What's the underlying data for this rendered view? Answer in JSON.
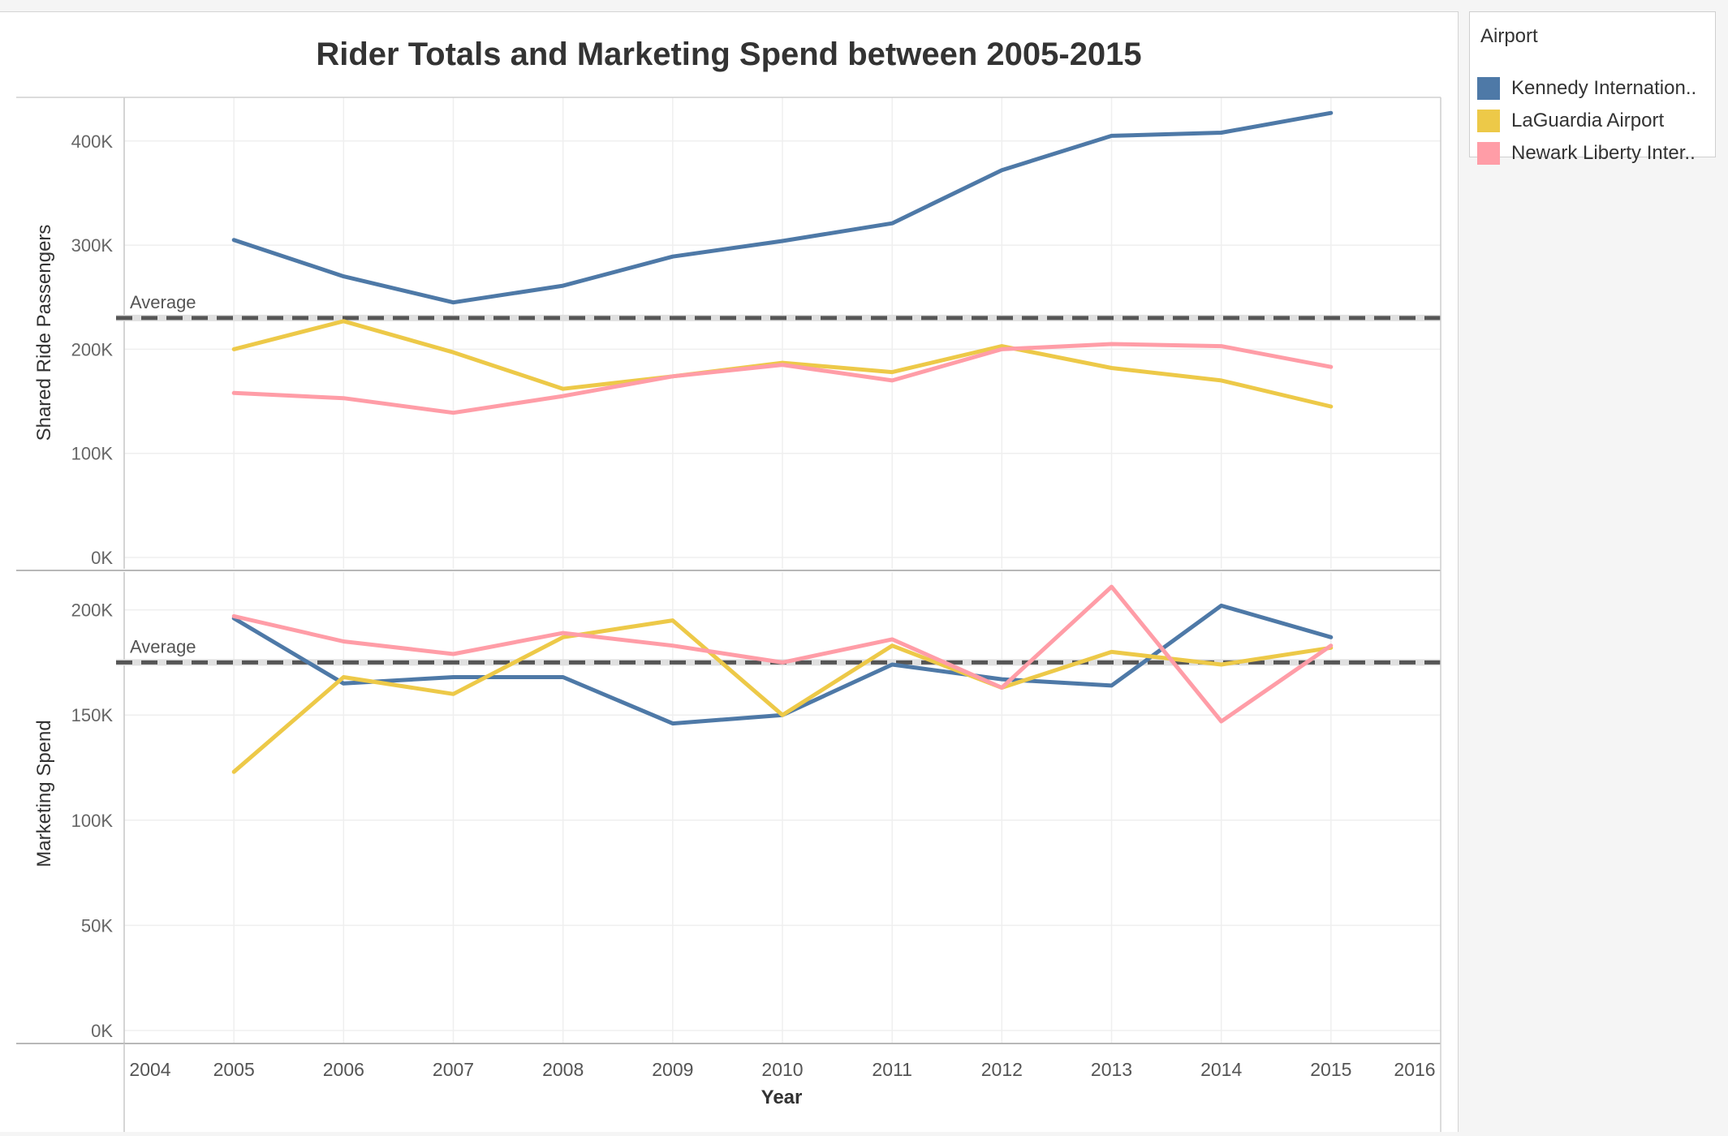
{
  "chart_data": [
    {
      "type": "line",
      "title": "Rider Totals and Marketing Spend between 2005-2015",
      "ylabel": "Shared Ride Passengers",
      "xlabel": "Year",
      "x": [
        2005,
        2006,
        2007,
        2008,
        2009,
        2010,
        2011,
        2012,
        2013,
        2014,
        2015
      ],
      "xlim": [
        2004,
        2016
      ],
      "ylim": [
        0,
        450000
      ],
      "yticks": [
        0,
        100000,
        200000,
        300000,
        400000
      ],
      "ytick_labels": [
        "0K",
        "100K",
        "200K",
        "300K",
        "400K"
      ],
      "grid": true,
      "reference_line": {
        "label": "Average",
        "value": 230000
      },
      "series": [
        {
          "name": "Kennedy Internation..",
          "color": "#4e79a7",
          "values": [
            305000,
            270000,
            245000,
            261000,
            289000,
            304000,
            321000,
            372000,
            405000,
            408000,
            427000
          ]
        },
        {
          "name": "LaGuardia Airport",
          "color": "#edc948",
          "values": [
            200000,
            227000,
            197000,
            162000,
            174000,
            187000,
            178000,
            203000,
            182000,
            170000,
            145000
          ]
        },
        {
          "name": "Newark Liberty Inter..",
          "color": "#ff9da7",
          "values": [
            158000,
            153000,
            139000,
            155000,
            174000,
            185000,
            170000,
            200000,
            205000,
            203000,
            183000
          ]
        }
      ]
    },
    {
      "type": "line",
      "ylabel": "Marketing Spend",
      "xlabel": "Year",
      "x": [
        2005,
        2006,
        2007,
        2008,
        2009,
        2010,
        2011,
        2012,
        2013,
        2014,
        2015
      ],
      "xlim": [
        2004,
        2016
      ],
      "ylim": [
        0,
        220000
      ],
      "yticks": [
        0,
        50000,
        100000,
        150000,
        200000
      ],
      "ytick_labels": [
        "0K",
        "50K",
        "100K",
        "150K",
        "200K"
      ],
      "xtick_labels": [
        "2004",
        "2005",
        "2006",
        "2007",
        "2008",
        "2009",
        "2010",
        "2011",
        "2012",
        "2013",
        "2014",
        "2015",
        "2016"
      ],
      "grid": true,
      "reference_line": {
        "label": "Average",
        "value": 175000
      },
      "series": [
        {
          "name": "Kennedy Internation..",
          "color": "#4e79a7",
          "values": [
            196000,
            165000,
            168000,
            168000,
            146000,
            150000,
            174000,
            167000,
            164000,
            202000,
            187000
          ]
        },
        {
          "name": "LaGuardia Airport",
          "color": "#edc948",
          "values": [
            123000,
            168000,
            160000,
            187000,
            195000,
            150000,
            183000,
            163000,
            180000,
            174000,
            182000
          ]
        },
        {
          "name": "Newark Liberty Inter..",
          "color": "#ff9da7",
          "values": [
            197000,
            185000,
            179000,
            189000,
            183000,
            175000,
            186000,
            163000,
            211000,
            147000,
            183000
          ]
        }
      ]
    }
  ],
  "legend": {
    "title": "Airport",
    "placement": "top-right",
    "items": [
      {
        "label": "Kennedy Internation..",
        "color": "#4e79a7"
      },
      {
        "label": "LaGuardia Airport",
        "color": "#edc948"
      },
      {
        "label": "Newark Liberty Inter..",
        "color": "#ff9da7"
      }
    ]
  }
}
